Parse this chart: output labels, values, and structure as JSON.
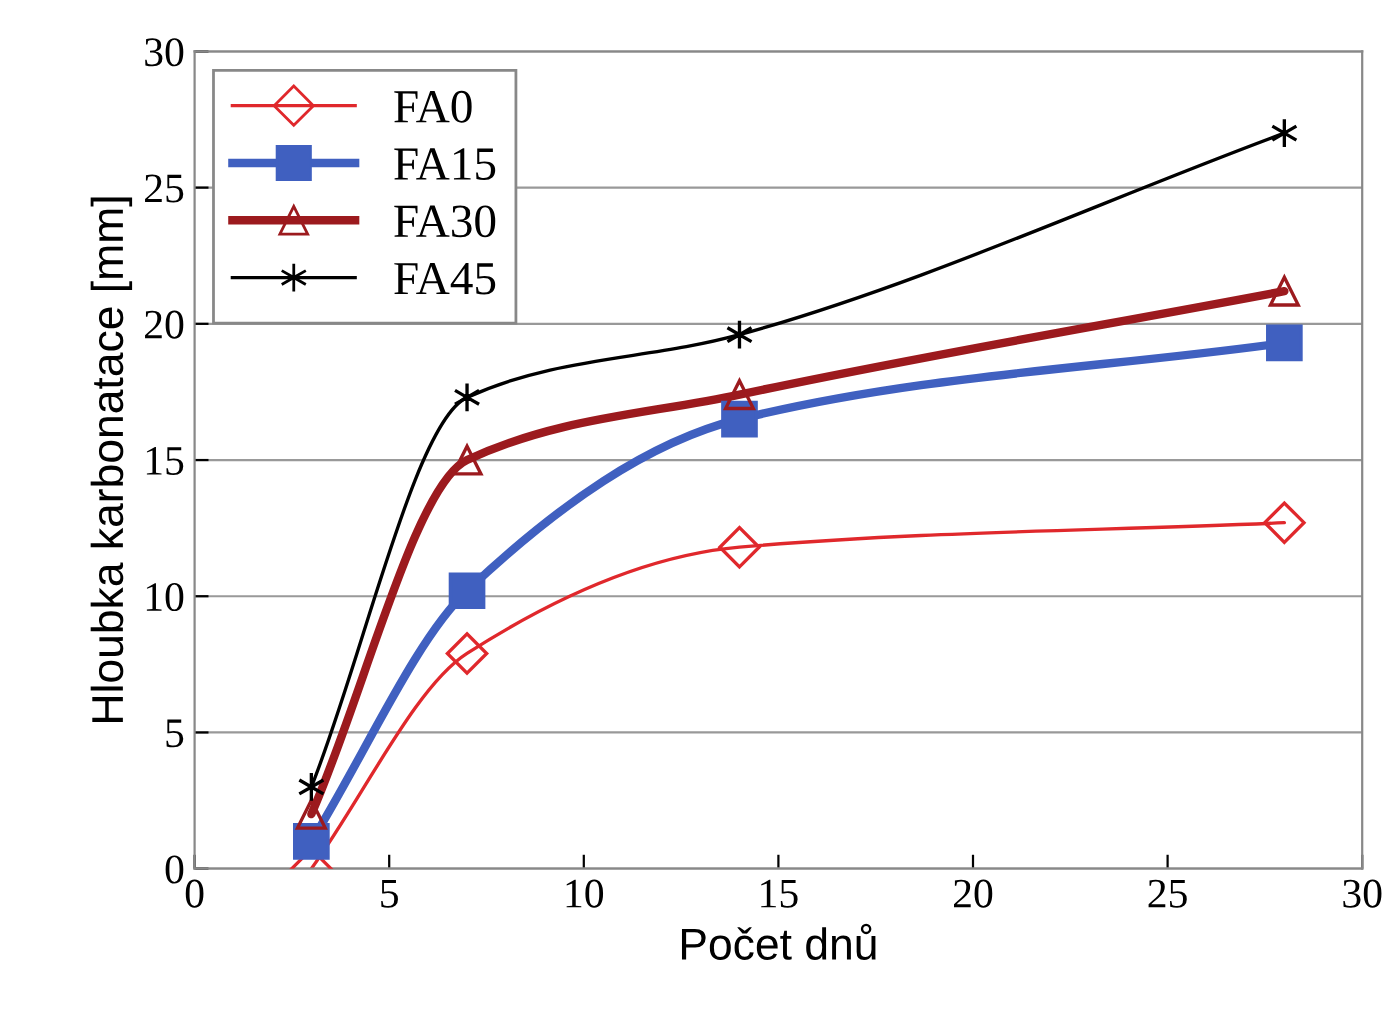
{
  "chart_data": {
    "type": "line",
    "xlabel": "Počet dnů",
    "ylabel": "Hloubka karbonatace [mm]",
    "x": [
      3,
      7,
      14,
      28
    ],
    "series": [
      {
        "name": "FA0",
        "color": "#e0282c",
        "values": [
          0,
          7.9,
          11.8,
          12.7
        ],
        "marker": "diamond"
      },
      {
        "name": "FA15",
        "color": "#4060c0",
        "values": [
          1.0,
          10.2,
          16.5,
          19.3
        ],
        "marker": "square"
      },
      {
        "name": "FA30",
        "color": "#9c1a1e",
        "values": [
          2.0,
          15.0,
          17.4,
          21.2
        ],
        "marker": "triangle"
      },
      {
        "name": "FA45",
        "color": "#000000",
        "values": [
          3.0,
          17.3,
          19.6,
          27.0
        ],
        "marker": "cross"
      }
    ],
    "xlim": [
      0,
      30
    ],
    "xticks": [
      0,
      5,
      10,
      15,
      20,
      25,
      30
    ],
    "ylim": [
      0,
      30
    ],
    "yticks": [
      0,
      5,
      10,
      15,
      20,
      25,
      30
    ],
    "grid": "y",
    "legend": "top left",
    "line_style": "solid"
  }
}
